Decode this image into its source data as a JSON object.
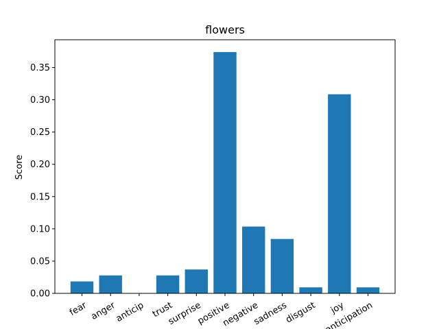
{
  "chart_data": {
    "type": "bar",
    "title": "flowers",
    "xlabel": "",
    "ylabel": "Score",
    "categories": [
      "fear",
      "anger",
      "anticip",
      "trust",
      "surprise",
      "positive",
      "negative",
      "sadness",
      "disgust",
      "joy",
      "anticipation"
    ],
    "values": [
      0.0185,
      0.0278,
      0.0,
      0.0278,
      0.037,
      0.374,
      0.1035,
      0.0843,
      0.0093,
      0.3085,
      0.0093
    ],
    "ylim": [
      0,
      0.393
    ],
    "yticks": [
      0.0,
      0.05,
      0.1,
      0.15,
      0.2,
      0.25,
      0.3,
      0.35
    ],
    "ytick_labels": [
      "0.00",
      "0.05",
      "0.10",
      "0.15",
      "0.20",
      "0.25",
      "0.30",
      "0.35"
    ],
    "bar_color": "#1f77b4",
    "grid": false,
    "legend": "none"
  }
}
